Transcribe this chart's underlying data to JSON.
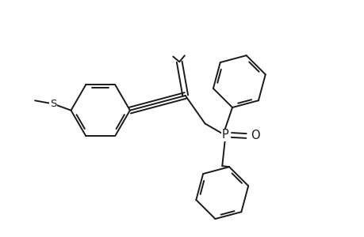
{
  "background_color": "#ffffff",
  "line_color": "#1a1a1a",
  "lw": 1.4,
  "fig_w": 4.6,
  "fig_h": 3.0,
  "dpi": 100,
  "xlim": [
    -2.3,
    2.1
  ],
  "ylim": [
    -1.45,
    1.15
  ]
}
